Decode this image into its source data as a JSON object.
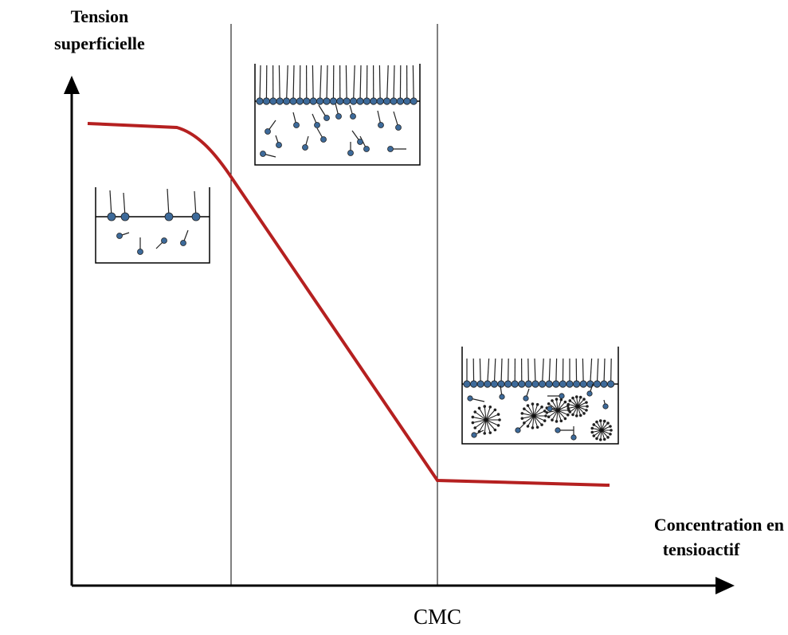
{
  "axes": {
    "y_label": [
      "Tension",
      "superficielle"
    ],
    "x_label": [
      "Concentration en",
      "tensioactif"
    ],
    "marker": "CMC"
  }
}
